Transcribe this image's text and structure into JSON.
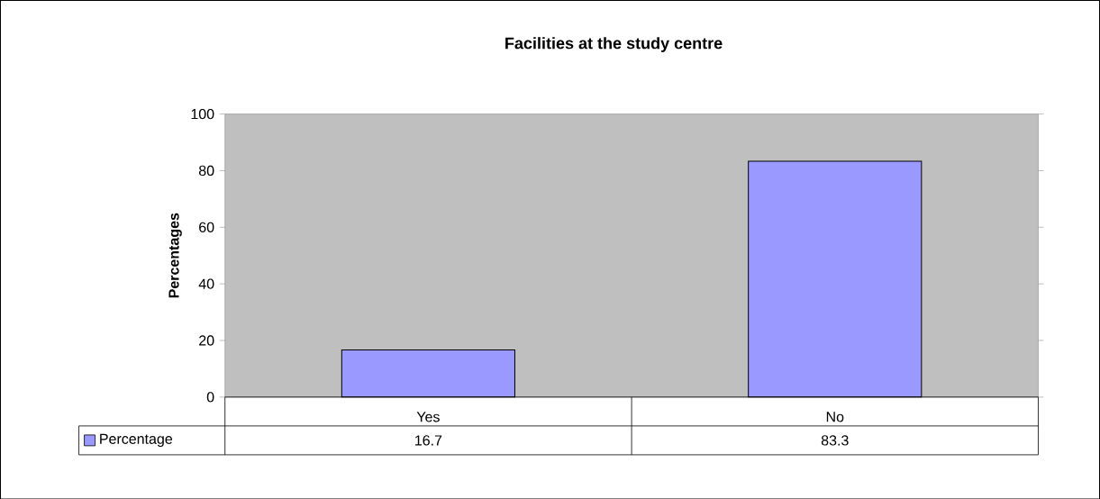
{
  "chart_data": {
    "type": "bar",
    "title": "Facilities at the study centre",
    "ylabel": "Percentages",
    "categories": [
      "Yes",
      "No"
    ],
    "series": [
      {
        "name": "Percentage",
        "color": "#9999ff",
        "values": [
          16.7,
          83.3
        ]
      }
    ],
    "ylim": [
      0,
      100
    ],
    "yticks": [
      0,
      20,
      40,
      60,
      80,
      100
    ],
    "data_labels": true,
    "legend": "bottom",
    "grid": false
  }
}
